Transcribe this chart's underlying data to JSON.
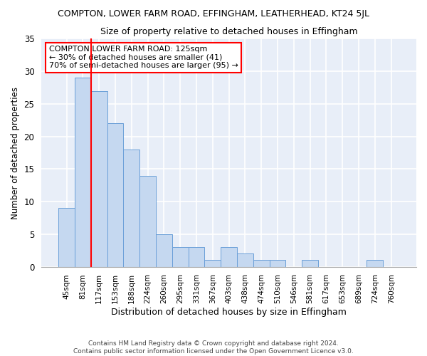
{
  "title": "COMPTON, LOWER FARM ROAD, EFFINGHAM, LEATHERHEAD, KT24 5JL",
  "subtitle": "Size of property relative to detached houses in Effingham",
  "xlabel": "Distribution of detached houses by size in Effingham",
  "ylabel": "Number of detached properties",
  "categories": [
    "45sqm",
    "81sqm",
    "117sqm",
    "153sqm",
    "188sqm",
    "224sqm",
    "260sqm",
    "295sqm",
    "331sqm",
    "367sqm",
    "403sqm",
    "438sqm",
    "474sqm",
    "510sqm",
    "546sqm",
    "581sqm",
    "617sqm",
    "653sqm",
    "689sqm",
    "724sqm",
    "760sqm"
  ],
  "values": [
    9,
    29,
    27,
    22,
    18,
    14,
    5,
    3,
    3,
    1,
    3,
    2,
    1,
    1,
    0,
    1,
    0,
    0,
    0,
    1,
    0
  ],
  "bar_color": "#c5d8f0",
  "bar_edge_color": "#6a9fd8",
  "redline_index": 2,
  "annotation_title": "COMPTON LOWER FARM ROAD: 125sqm",
  "annotation_line1": "← 30% of detached houses are smaller (41)",
  "annotation_line2": "70% of semi-detached houses are larger (95) →",
  "ylim": [
    0,
    35
  ],
  "yticks": [
    0,
    5,
    10,
    15,
    20,
    25,
    30,
    35
  ],
  "footer1": "Contains HM Land Registry data © Crown copyright and database right 2024.",
  "footer2": "Contains public sector information licensed under the Open Government Licence v3.0.",
  "bg_color": "#e8eef8"
}
